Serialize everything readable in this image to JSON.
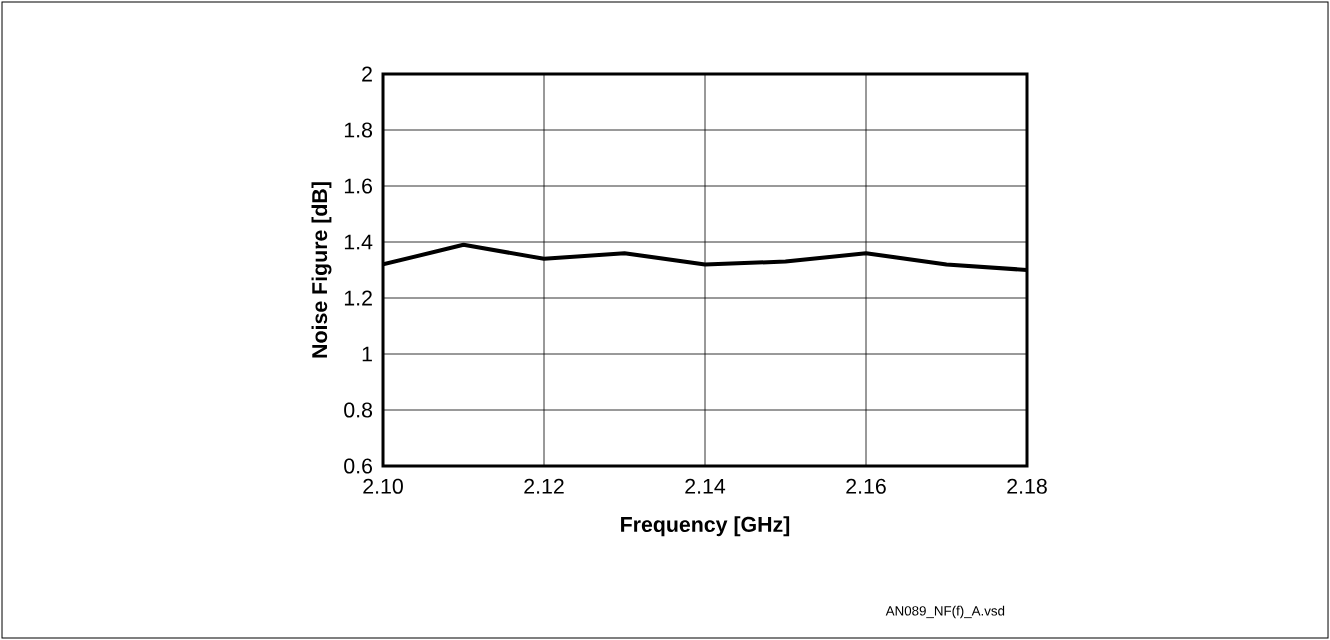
{
  "chart_data": {
    "type": "line",
    "xlabel": "Frequency [GHz]",
    "ylabel": "Noise Figure [dB]",
    "x": [
      2.1,
      2.11,
      2.12,
      2.13,
      2.14,
      2.15,
      2.16,
      2.17,
      2.18
    ],
    "series": [
      {
        "color": "#000000",
        "values": [
          1.32,
          1.39,
          1.34,
          1.36,
          1.32,
          1.33,
          1.36,
          1.32,
          1.3
        ]
      }
    ],
    "xlim": [
      2.1,
      2.18
    ],
    "ylim": [
      0.6,
      2
    ],
    "xticks": [
      {
        "value": 2.1,
        "label": "2.10"
      },
      {
        "value": 2.12,
        "label": "2.12"
      },
      {
        "value": 2.14,
        "label": "2.14"
      },
      {
        "value": 2.16,
        "label": "2.16"
      },
      {
        "value": 2.18,
        "label": "2.18"
      }
    ],
    "yticks": [
      0.6,
      0.8,
      1,
      1.2,
      1.4,
      1.6,
      1.8,
      2
    ],
    "grid": true,
    "marker": "none",
    "line_style": "solid",
    "annotations": [
      "AN089_NF(f)_A.vsd"
    ]
  }
}
